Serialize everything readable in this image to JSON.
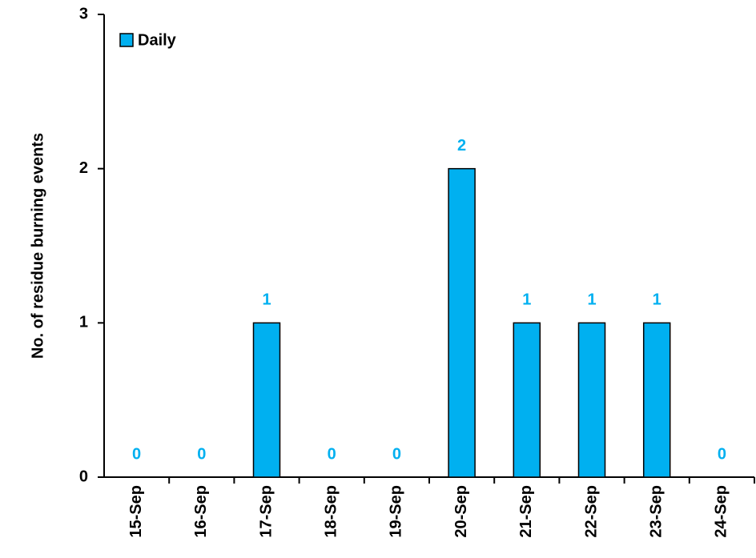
{
  "chart_data": {
    "type": "bar",
    "y_label": "No. of residue burning events",
    "categories": [
      "15-Sep",
      "16-Sep",
      "17-Sep",
      "18-Sep",
      "19-Sep",
      "20-Sep",
      "21-Sep",
      "22-Sep",
      "23-Sep",
      "24-Sep"
    ],
    "series": [
      {
        "name": "Daily",
        "color": "#00b0f0",
        "values": [
          0,
          0,
          1,
          0,
          0,
          2,
          1,
          1,
          1,
          0
        ]
      }
    ],
    "ylim": [
      0,
      3
    ],
    "yticks": [
      0,
      1,
      2,
      3
    ],
    "legend": "upper left",
    "data_labels": true
  }
}
